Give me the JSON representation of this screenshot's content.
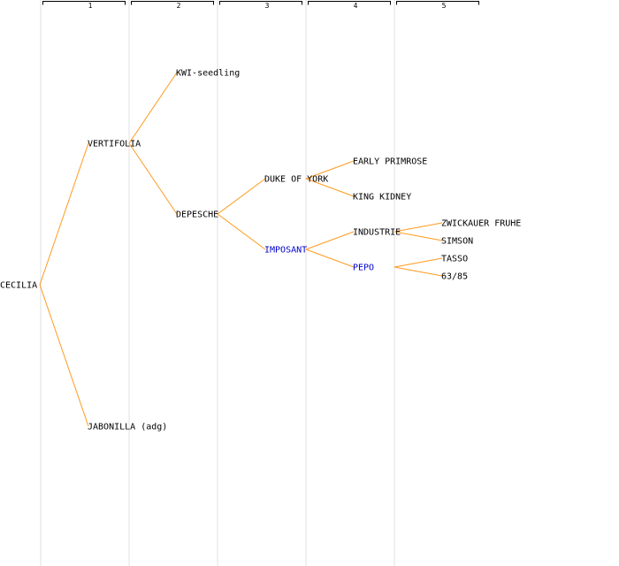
{
  "generations": [
    "1",
    "2",
    "3",
    "4",
    "5"
  ],
  "colors": {
    "edge": "#ff9a1f",
    "text": "#000000",
    "highlight": "#0000cc",
    "guide": "#f0f0f0"
  },
  "nodes": {
    "cecilia": "CECILIA",
    "vertifolia": "VERTIFOLIA",
    "jabonilla": "JABONILLA (adg)",
    "kwi_seedling": "KWI-seedling",
    "depesche": "DEPESCHE",
    "duke_of_york": "DUKE OF YORK",
    "imposant": "IMPOSANT",
    "early_primrose": "EARLY PRIMROSE",
    "king_kidney": "KING KIDNEY",
    "industrie": "INDUSTRIE",
    "pepo": "PEPO",
    "zwickauer_fruhe": "ZWICKAUER FRUHE",
    "simson": "SIMSON",
    "tasso": "TASSO",
    "n63_85": "63/85"
  }
}
